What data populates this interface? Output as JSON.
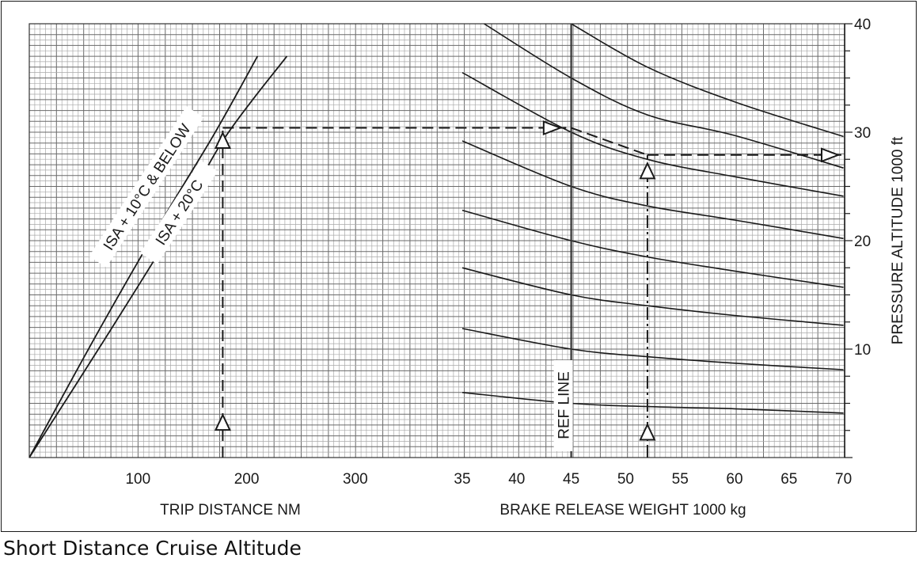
{
  "caption": "Short Distance Cruise Altitude",
  "chart_data": [
    {
      "type": "line",
      "panel": "trip-distance",
      "xlabel": "TRIP DISTANCE  NM",
      "xticks": [
        100,
        200,
        300
      ],
      "xlim": [
        0,
        375
      ],
      "ylim": [
        0,
        40
      ],
      "series": [
        {
          "name": "ISA + 10°C & BELOW",
          "x": [
            0,
            60,
            120,
            170,
            210
          ],
          "y": [
            0,
            11,
            21.5,
            29.8,
            37
          ]
        },
        {
          "name": "ISA + 20°C",
          "x": [
            0,
            70,
            135,
            180,
            237
          ],
          "y": [
            0,
            11,
            21.5,
            29.5,
            37
          ]
        }
      ],
      "example": {
        "trip_distance": 178,
        "altitude": 30.4
      }
    },
    {
      "type": "line",
      "panel": "brake-release-weight",
      "xlabel": "BRAKE RELEASE WEIGHT   1000 kg",
      "xticks": [
        35,
        40,
        45,
        50,
        55,
        60,
        65,
        70
      ],
      "xlim": [
        35,
        70
      ],
      "ylabel": "PRESSURE ALTITUDE   1000 ft",
      "yticks": [
        10,
        20,
        30,
        40
      ],
      "ylim": [
        0,
        40
      ],
      "ref_line": {
        "label": "REF LINE",
        "x": 45
      },
      "series": [
        {
          "x": [
            35,
            45,
            52,
            60,
            70
          ],
          "y": [
            6,
            5,
            4.7,
            4.5,
            4.1
          ]
        },
        {
          "x": [
            35,
            45,
            52,
            60,
            70
          ],
          "y": [
            11.9,
            10,
            9.3,
            8.7,
            8.1
          ]
        },
        {
          "x": [
            35,
            45,
            52,
            60,
            70
          ],
          "y": [
            17.5,
            15,
            14,
            13.1,
            12.2
          ]
        },
        {
          "x": [
            35,
            45,
            52,
            60,
            70
          ],
          "y": [
            22.8,
            20,
            18.5,
            17.2,
            15.7
          ]
        },
        {
          "x": [
            35,
            45,
            52,
            60,
            70
          ],
          "y": [
            29.2,
            25,
            23.2,
            21.9,
            20.2
          ]
        },
        {
          "x": [
            35,
            45,
            52,
            60,
            70
          ],
          "y": [
            35.5,
            30,
            27.5,
            25.9,
            24.1
          ]
        },
        {
          "x": [
            37,
            45,
            52,
            60,
            70
          ],
          "y": [
            40,
            35,
            31.6,
            29.7,
            26.7
          ]
        },
        {
          "x": [
            45,
            52,
            60,
            70
          ],
          "y": [
            40,
            36,
            32.8,
            29.6
          ]
        }
      ],
      "example": {
        "weight_ref": 45,
        "weight": 52,
        "altitude_ref": 30.4,
        "altitude": 27.9
      }
    }
  ]
}
